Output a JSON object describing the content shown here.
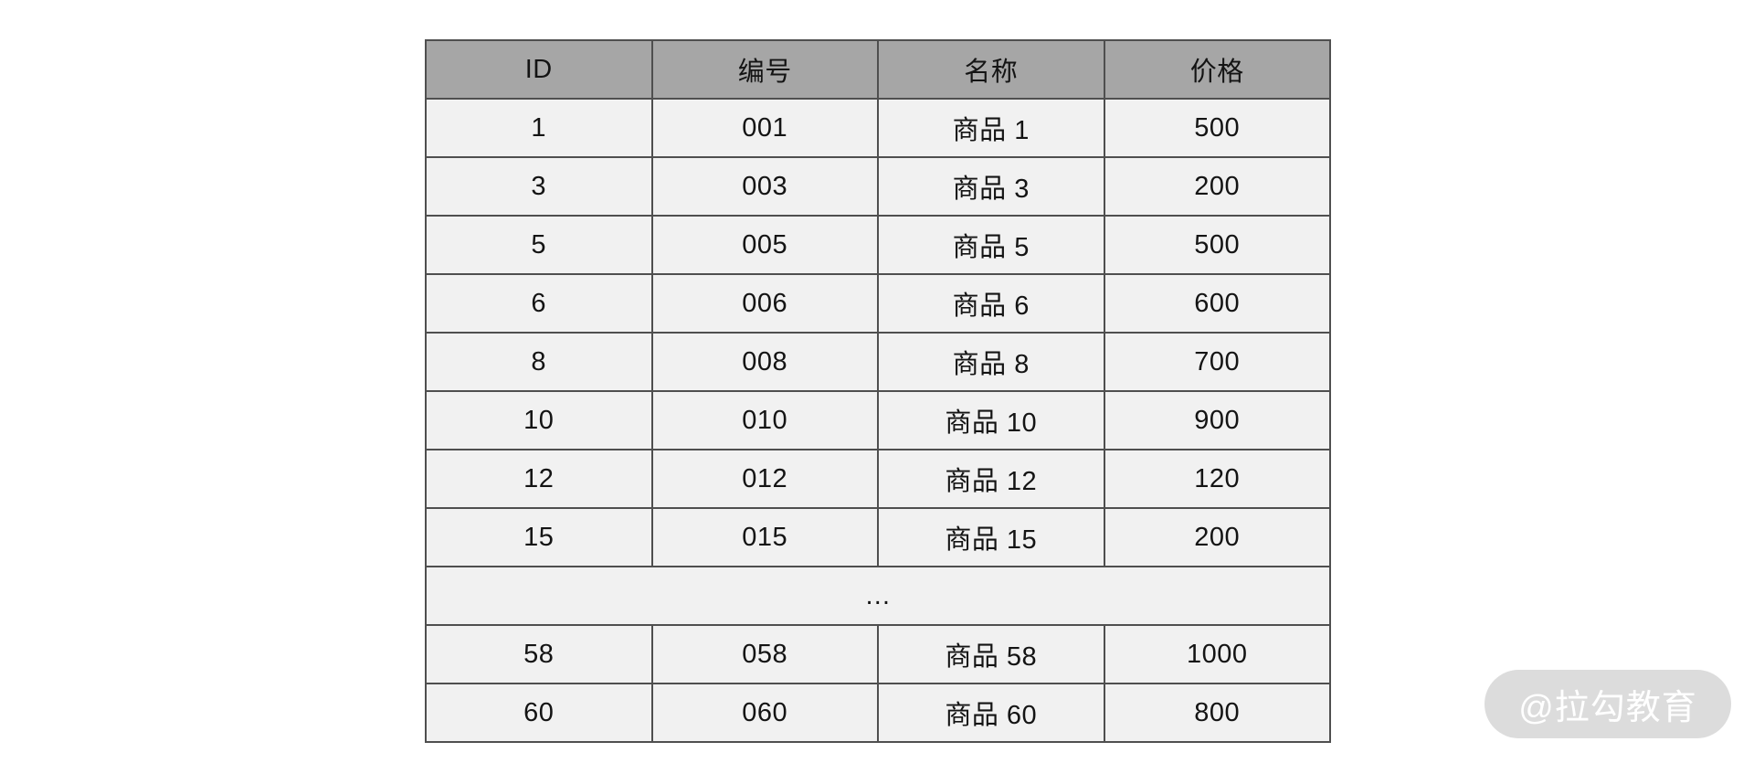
{
  "table": {
    "columns": [
      "ID",
      "编号",
      "名称",
      "价格"
    ],
    "rows": [
      {
        "cells": [
          "1",
          "001",
          "商品 1",
          "500"
        ]
      },
      {
        "cells": [
          "3",
          "003",
          "商品 3",
          "200"
        ]
      },
      {
        "cells": [
          "5",
          "005",
          "商品 5",
          "500"
        ]
      },
      {
        "cells": [
          "6",
          "006",
          "商品 6",
          "600"
        ]
      },
      {
        "cells": [
          "8",
          "008",
          "商品 8",
          "700"
        ]
      },
      {
        "cells": [
          "10",
          "010",
          "商品 10",
          "900"
        ]
      },
      {
        "cells": [
          "12",
          "012",
          "商品 12",
          "120"
        ]
      },
      {
        "cells": [
          "15",
          "015",
          "商品 15",
          "200"
        ]
      },
      {
        "ellipsis": "…"
      },
      {
        "cells": [
          "58",
          "058",
          "商品 58",
          "1000"
        ]
      },
      {
        "cells": [
          "60",
          "060",
          "商品 60",
          "800"
        ]
      }
    ],
    "colors": {
      "header_bg": "#a6a6a6",
      "row_bg": "#f1f1f1",
      "border": "#4f4f4f",
      "text": "#141414"
    }
  },
  "watermark": {
    "text": "@拉勾教育",
    "bg": "#dcdcdc",
    "text_color": "#ffffff"
  }
}
